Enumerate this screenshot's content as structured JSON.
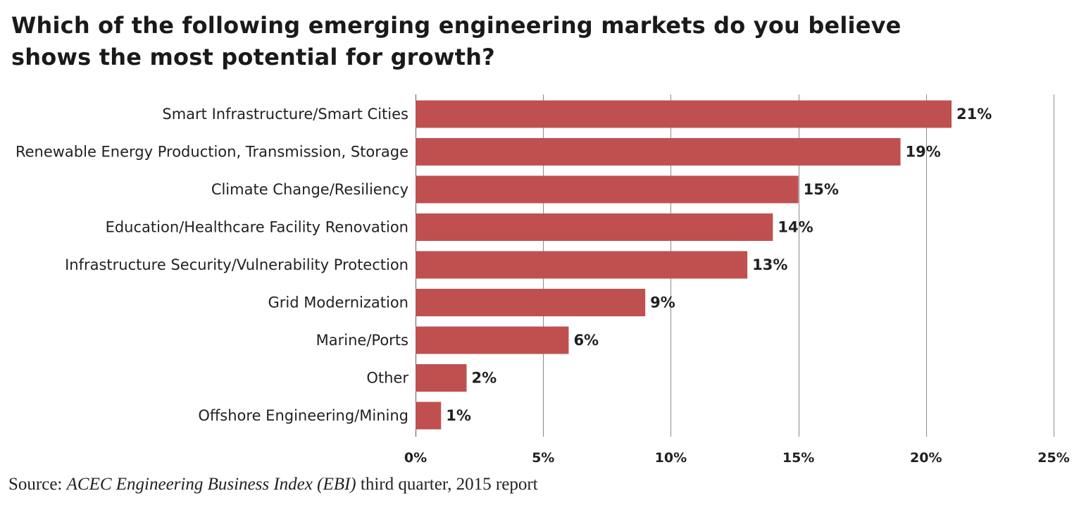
{
  "title": "Which of the following emerging engineering markets do you believe shows the most potential for growth?",
  "source": {
    "prefix": "Source: ",
    "italic": "ACEC Engineering Business Index (EBI)",
    "suffix": " third quarter, 2015 report"
  },
  "colors": {
    "bar": "#c05050",
    "grid": "#8a8a8a",
    "text": "#231f20"
  },
  "chart_data": {
    "type": "bar",
    "orientation": "horizontal",
    "categories": [
      "Smart Infrastructure/Smart Cities",
      "Renewable Energy Production, Transmission, Storage",
      "Climate Change/Resiliency",
      "Education/Healthcare Facility Renovation",
      "Infrastructure Security/Vulnerability Protection",
      "Grid Modernization",
      "Marine/Ports",
      "Other",
      "Offshore Engineering/Mining"
    ],
    "values": [
      21,
      19,
      15,
      14,
      13,
      9,
      6,
      2,
      1
    ],
    "value_labels": [
      "21%",
      "19%",
      "15%",
      "14%",
      "13%",
      "9%",
      "6%",
      "2%",
      "1%"
    ],
    "xlim": [
      0,
      25
    ],
    "xticks": [
      0,
      5,
      10,
      15,
      20,
      25
    ],
    "xtick_labels": [
      "0%",
      "5%",
      "10%",
      "15%",
      "20%",
      "25%"
    ],
    "grid": true,
    "legend": "none",
    "xlabel": "",
    "ylabel": ""
  }
}
